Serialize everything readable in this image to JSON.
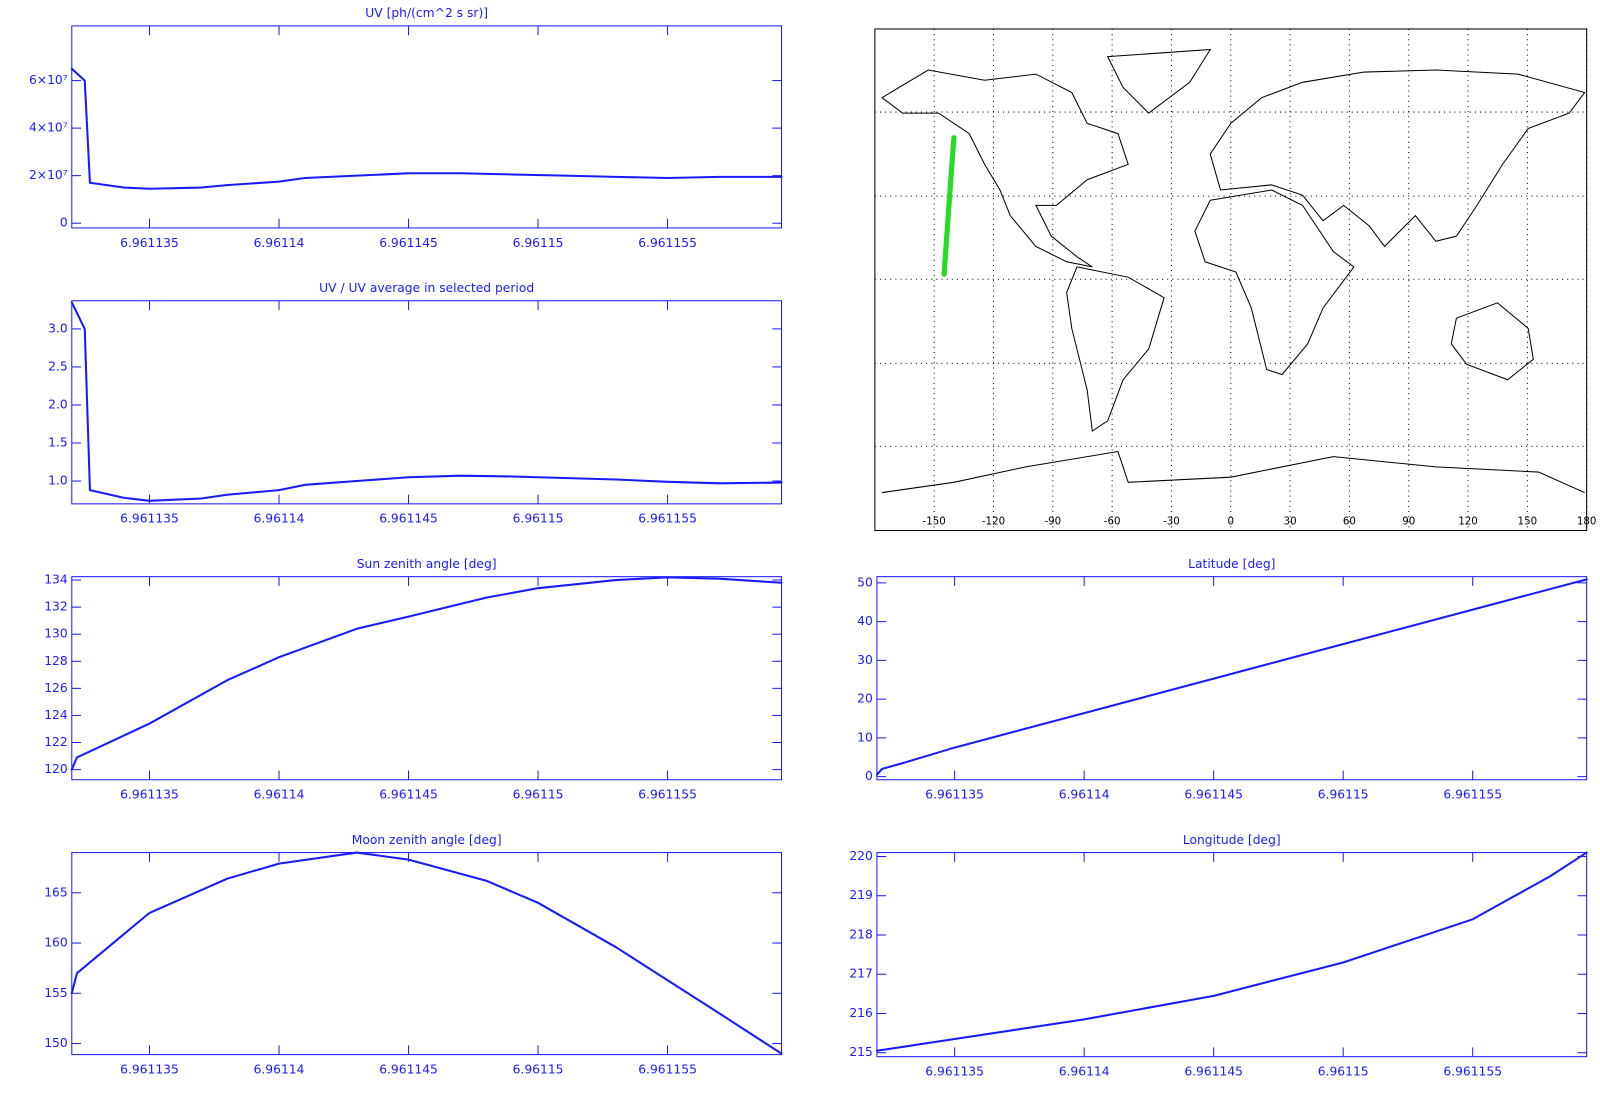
{
  "chart_data": [
    {
      "type": "line",
      "title": "UV [ph/(cm^2 s sr)]",
      "x": [
        6.961132,
        6.9611325,
        6.9611327,
        6.961134,
        6.961135,
        6.961137,
        6.961138,
        6.96114,
        6.961141,
        6.961143,
        6.961145,
        6.961147,
        6.961149,
        6.961151,
        6.961153,
        6.961155,
        6.961157,
        6.9611594
      ],
      "series": [
        {
          "color": "#1a1aff",
          "values": [
            65000000,
            60000000,
            17000000,
            15000000,
            14500000,
            15000000,
            16000000,
            17500000,
            19000000,
            20000000,
            21000000,
            21000000,
            20500000,
            20000000,
            19500000,
            19000000,
            19500000,
            19500000
          ]
        }
      ],
      "xlim": [
        6.961132,
        6.9611594
      ],
      "ylim": [
        -2000000,
        83000000
      ],
      "xticks": [
        6.961135,
        6.96114,
        6.961145,
        6.96115,
        6.961155
      ],
      "yticks": [
        0,
        {
          "value": 20000000,
          "label": "2×10⁷"
        },
        {
          "value": 40000000,
          "label": "4×10⁷"
        },
        {
          "value": 60000000,
          "label": "6×10⁷"
        }
      ]
    },
    {
      "type": "line",
      "title": "UV / UV average in selected period",
      "x": [
        6.961132,
        6.9611325,
        6.9611327,
        6.961134,
        6.961135,
        6.961137,
        6.961138,
        6.96114,
        6.961141,
        6.961143,
        6.961145,
        6.961147,
        6.961149,
        6.961151,
        6.961153,
        6.961155,
        6.961157,
        6.9611594
      ],
      "series": [
        {
          "color": "#1a1aff",
          "values": [
            3.35,
            3.0,
            0.88,
            0.78,
            0.74,
            0.77,
            0.82,
            0.88,
            0.95,
            1.0,
            1.05,
            1.07,
            1.06,
            1.04,
            1.02,
            0.99,
            0.97,
            0.98
          ]
        }
      ],
      "xlim": [
        6.961132,
        6.9611594
      ],
      "ylim": [
        0.7,
        3.37
      ],
      "xticks": [
        6.961135,
        6.96114,
        6.961145,
        6.96115,
        6.961155
      ],
      "yticks": [
        {
          "value": 1,
          "label": "1.0"
        },
        1.5,
        {
          "value": 2,
          "label": "2.0"
        },
        2.5,
        {
          "value": 3,
          "label": "3.0"
        }
      ]
    },
    {
      "type": "line",
      "title": "Sun zenith angle [deg]",
      "x": [
        6.961132,
        6.9611322,
        6.961135,
        6.961138,
        6.96114,
        6.961143,
        6.961145,
        6.961148,
        6.96115,
        6.961153,
        6.961155,
        6.961157,
        6.9611594
      ],
      "series": [
        {
          "color": "#1a1aff",
          "values": [
            120.0,
            120.9,
            123.4,
            126.6,
            128.3,
            130.4,
            131.3,
            132.7,
            133.4,
            134.0,
            134.2,
            134.1,
            133.8
          ]
        }
      ],
      "xlim": [
        6.961132,
        6.9611594
      ],
      "ylim": [
        119.25,
        134.25
      ],
      "xticks": [
        6.961135,
        6.96114,
        6.961145,
        6.96115,
        6.961155
      ],
      "yticks": [
        120,
        122,
        124,
        126,
        128,
        130,
        132,
        134
      ]
    },
    {
      "type": "line",
      "title": "Moon zenith angle [deg]",
      "x": [
        6.961132,
        6.9611322,
        6.961135,
        6.961138,
        6.96114,
        6.961143,
        6.961145,
        6.961148,
        6.96115,
        6.961153,
        6.961155,
        6.961157,
        6.9611594
      ],
      "series": [
        {
          "color": "#1a1aff",
          "values": [
            155.0,
            157.0,
            163.0,
            166.4,
            167.9,
            169.0,
            168.3,
            166.2,
            164.0,
            159.6,
            156.3,
            153.0,
            149.0
          ]
        }
      ],
      "xlim": [
        6.961132,
        6.9611594
      ],
      "ylim": [
        148.9,
        169.0
      ],
      "xticks": [
        6.961135,
        6.96114,
        6.961145,
        6.96115,
        6.961155
      ],
      "yticks": [
        150,
        155,
        160,
        165
      ]
    },
    {
      "type": "map",
      "xlim": [
        -180,
        180
      ],
      "ylim": [
        -90,
        90
      ],
      "xticks": [
        -150,
        -120,
        -90,
        -60,
        -30,
        0,
        30,
        60,
        90,
        120,
        150,
        180
      ],
      "series": [
        {
          "color": "#22dd22",
          "x": [
            -145,
            -144,
            -143,
            -142,
            -141,
            -140
          ],
          "values": [
            2,
            12,
            22,
            32,
            42,
            51
          ]
        }
      ]
    },
    {
      "type": "line",
      "title": "Latitude [deg]",
      "x": [
        6.961132,
        6.9611322,
        6.961133,
        6.961135,
        6.96114,
        6.961145,
        6.96115,
        6.961155,
        6.9611594
      ],
      "series": [
        {
          "color": "#1a1aff",
          "values": [
            0.5,
            2.0,
            3.5,
            7.5,
            16.4,
            25.3,
            34.2,
            43.1,
            50.9
          ]
        }
      ],
      "xlim": [
        6.961132,
        6.9611594
      ],
      "ylim": [
        -0.8,
        51.6
      ],
      "xticks": [
        6.961135,
        6.96114,
        6.961145,
        6.96115,
        6.961155
      ],
      "yticks": [
        0,
        10,
        20,
        30,
        40,
        50
      ]
    },
    {
      "type": "line",
      "title": "Longitude [deg]",
      "x": [
        6.961132,
        6.961135,
        6.96114,
        6.961145,
        6.96115,
        6.961155,
        6.961158,
        6.9611594
      ],
      "series": [
        {
          "color": "#1a1aff",
          "values": [
            215.05,
            215.35,
            215.85,
            216.45,
            217.3,
            218.4,
            219.5,
            220.1
          ]
        }
      ],
      "xlim": [
        6.961132,
        6.9611594
      ],
      "ylim": [
        214.9,
        220.1
      ],
      "xticks": [
        6.961135,
        6.96114,
        6.961145,
        6.96115,
        6.961155
      ],
      "yticks": [
        215,
        216,
        217,
        218,
        219,
        220
      ]
    }
  ]
}
